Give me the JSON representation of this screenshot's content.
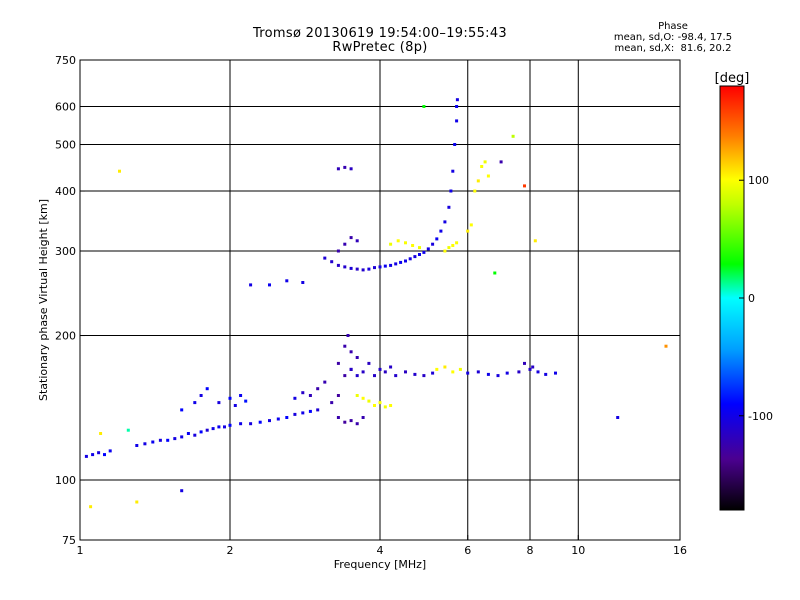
{
  "chart_data": {
    "type": "scatter",
    "title": "Tromsø 20130619 19:54:00–19:55:43",
    "subtitle": "RwPretec (8p)",
    "xlabel": "Frequency [MHz]",
    "ylabel": "Stationary phase Virtual Height [km]",
    "x_scale": "log",
    "y_scale": "log",
    "xlim": [
      1,
      16
    ],
    "ylim": [
      75,
      750
    ],
    "x_ticks": [
      1,
      2,
      4,
      6,
      8,
      10,
      16
    ],
    "x_tick_labels": [
      "1",
      "2",
      "4",
      "6",
      "8",
      "10",
      "16"
    ],
    "y_ticks": [
      75,
      100,
      200,
      300,
      400,
      500,
      600,
      750
    ],
    "y_tick_labels": [
      "75",
      "100",
      "200",
      "300",
      "400",
      "500",
      "600",
      "750"
    ],
    "grid": true,
    "stats_header": "Phase",
    "stats_line_o": "mean, sd,O: -98.4, 17.5",
    "stats_line_x": "mean, sd,X:  81.6, 20.2",
    "colorbar": {
      "label": "[deg]",
      "ticks": [
        100,
        0,
        -100
      ],
      "tick_labels": [
        "100",
        "0",
        "-100"
      ],
      "range": [
        -180,
        180
      ]
    },
    "series": [
      {
        "points": [
          [
            1.03,
            112,
            -110
          ],
          [
            1.06,
            113,
            -108
          ],
          [
            1.09,
            114,
            -112
          ],
          [
            1.12,
            113,
            -100
          ],
          [
            1.15,
            115,
            -105
          ],
          [
            1.3,
            118,
            -108
          ],
          [
            1.35,
            119,
            -110
          ],
          [
            1.4,
            120,
            -105
          ],
          [
            1.45,
            121,
            -112
          ],
          [
            1.5,
            121,
            -100
          ],
          [
            1.55,
            122,
            -110
          ],
          [
            1.6,
            123,
            -108
          ],
          [
            1.65,
            125,
            -104
          ],
          [
            1.7,
            124,
            -112
          ],
          [
            1.75,
            126,
            -100
          ],
          [
            1.8,
            127,
            -115
          ],
          [
            1.85,
            128,
            -108
          ],
          [
            1.9,
            129,
            -105
          ],
          [
            1.95,
            129,
            -110
          ],
          [
            2.0,
            130,
            -100
          ],
          [
            2.1,
            131,
            -108
          ],
          [
            2.2,
            131,
            -112
          ],
          [
            2.3,
            132,
            -100
          ],
          [
            2.4,
            133,
            -110
          ],
          [
            2.5,
            134,
            -105
          ],
          [
            2.6,
            135,
            -100
          ],
          [
            2.7,
            137,
            -112
          ],
          [
            2.8,
            138,
            -108
          ],
          [
            2.9,
            139,
            -100
          ],
          [
            3.0,
            140,
            -115
          ],
          [
            1.6,
            140,
            -100
          ],
          [
            1.7,
            145,
            -108
          ],
          [
            1.75,
            150,
            -110
          ],
          [
            1.8,
            155,
            -100
          ],
          [
            1.9,
            145,
            -112
          ],
          [
            2.0,
            148,
            -100
          ],
          [
            2.1,
            150,
            -105
          ],
          [
            2.05,
            143,
            -110
          ],
          [
            2.15,
            146,
            -95
          ],
          [
            2.7,
            148,
            -110
          ],
          [
            2.8,
            152,
            -120
          ],
          [
            2.9,
            150,
            -125
          ],
          [
            3.0,
            155,
            -130
          ],
          [
            3.1,
            160,
            -128
          ],
          [
            3.2,
            145,
            -130
          ],
          [
            3.3,
            150,
            -135
          ],
          [
            3.4,
            165,
            -132
          ],
          [
            3.5,
            170,
            -130
          ],
          [
            3.6,
            180,
            -128
          ],
          [
            3.3,
            135,
            -130
          ],
          [
            3.4,
            132,
            -135
          ],
          [
            3.5,
            133,
            -132
          ],
          [
            3.6,
            131,
            -130
          ],
          [
            3.7,
            135,
            -128
          ],
          [
            3.3,
            175,
            -132
          ],
          [
            3.4,
            190,
            -130
          ],
          [
            3.45,
            200,
            -128
          ],
          [
            3.5,
            185,
            -130
          ],
          [
            3.5,
            170,
            -120
          ],
          [
            3.6,
            165,
            -118
          ],
          [
            3.7,
            168,
            -120
          ],
          [
            3.8,
            175,
            -122
          ],
          [
            3.6,
            150,
            95
          ],
          [
            3.7,
            148,
            100
          ],
          [
            3.8,
            146,
            95
          ],
          [
            3.9,
            143,
            100
          ],
          [
            4.0,
            145,
            98
          ],
          [
            4.1,
            142,
            96
          ],
          [
            4.2,
            143,
            100
          ],
          [
            3.9,
            165,
            -120
          ],
          [
            4.0,
            170,
            -118
          ],
          [
            4.1,
            168,
            -122
          ],
          [
            4.2,
            172,
            -120
          ],
          [
            4.3,
            165,
            -118
          ],
          [
            4.5,
            168,
            -122
          ],
          [
            4.7,
            166,
            -118
          ],
          [
            4.9,
            165,
            -120
          ],
          [
            5.1,
            167,
            -115
          ],
          [
            5.2,
            170,
            100
          ],
          [
            5.4,
            172,
            105
          ],
          [
            5.6,
            168,
            100
          ],
          [
            5.8,
            170,
            95
          ],
          [
            6.0,
            167,
            -110
          ],
          [
            6.3,
            168,
            -115
          ],
          [
            6.6,
            166,
            -108
          ],
          [
            6.9,
            165,
            -112
          ],
          [
            7.2,
            167,
            -110
          ],
          [
            7.6,
            168,
            -120
          ],
          [
            8.0,
            170,
            -118
          ],
          [
            8.3,
            168,
            -112
          ],
          [
            8.6,
            166,
            -110
          ],
          [
            9.0,
            167,
            -108
          ],
          [
            7.8,
            175,
            -125
          ],
          [
            8.1,
            172,
            -120
          ],
          [
            3.1,
            290,
            -115
          ],
          [
            3.2,
            285,
            -118
          ],
          [
            3.3,
            280,
            -120
          ],
          [
            3.4,
            278,
            -118
          ],
          [
            3.5,
            276,
            -115
          ],
          [
            3.6,
            275,
            -120
          ],
          [
            3.7,
            274,
            -118
          ],
          [
            3.8,
            275,
            -112
          ],
          [
            3.9,
            277,
            -115
          ],
          [
            4.0,
            278,
            -110
          ],
          [
            4.1,
            279,
            -105
          ],
          [
            4.2,
            280,
            -108
          ],
          [
            4.3,
            282,
            -110
          ],
          [
            4.4,
            284,
            -105
          ],
          [
            4.5,
            286,
            -108
          ],
          [
            4.6,
            289,
            -110
          ],
          [
            4.7,
            292,
            -112
          ],
          [
            4.8,
            295,
            -105
          ],
          [
            4.9,
            298,
            -108
          ],
          [
            5.0,
            303,
            -110
          ],
          [
            5.1,
            310,
            -112
          ],
          [
            5.2,
            318,
            -105
          ],
          [
            5.3,
            330,
            -108
          ],
          [
            5.4,
            345,
            -110
          ],
          [
            5.5,
            370,
            -112
          ],
          [
            5.55,
            400,
            -108
          ],
          [
            5.6,
            440,
            -110
          ],
          [
            5.65,
            500,
            -105
          ],
          [
            5.7,
            560,
            -108
          ],
          [
            5.72,
            620,
            -110
          ],
          [
            3.3,
            300,
            -130
          ],
          [
            3.4,
            310,
            -128
          ],
          [
            3.5,
            320,
            -130
          ],
          [
            3.6,
            315,
            -125
          ],
          [
            4.2,
            310,
            95
          ],
          [
            4.35,
            315,
            100
          ],
          [
            4.5,
            312,
            98
          ],
          [
            4.65,
            308,
            100
          ],
          [
            4.8,
            305,
            95
          ],
          [
            5.4,
            300,
            100
          ],
          [
            5.5,
            305,
            95
          ],
          [
            5.6,
            308,
            100
          ],
          [
            5.7,
            312,
            98
          ],
          [
            3.3,
            445,
            -125
          ],
          [
            3.4,
            448,
            -128
          ],
          [
            3.5,
            445,
            -122
          ],
          [
            2.2,
            255,
            -110
          ],
          [
            2.4,
            255,
            -105
          ],
          [
            2.6,
            260,
            -108
          ],
          [
            2.8,
            258,
            -110
          ],
          [
            6.2,
            400,
            100
          ],
          [
            6.3,
            420,
            105
          ],
          [
            6.4,
            450,
            98
          ],
          [
            6.5,
            460,
            95
          ],
          [
            6.6,
            430,
            100
          ],
          [
            6.0,
            330,
            105
          ],
          [
            6.1,
            340,
            100
          ],
          [
            7.0,
            460,
            -130
          ],
          [
            7.4,
            520,
            80
          ],
          [
            7.8,
            410,
            160
          ],
          [
            8.2,
            315,
            105
          ],
          [
            6.8,
            270,
            30
          ],
          [
            12,
            135,
            -110
          ],
          [
            15,
            190,
            130
          ],
          [
            5.7,
            600,
            -105
          ],
          [
            4.9,
            600,
            30
          ],
          [
            1.2,
            440,
            105
          ],
          [
            1.3,
            90,
            105
          ],
          [
            1.6,
            95,
            -110
          ],
          [
            1.05,
            88,
            105
          ],
          [
            1.1,
            125,
            105
          ],
          [
            1.25,
            127,
            10
          ]
        ]
      }
    ]
  }
}
